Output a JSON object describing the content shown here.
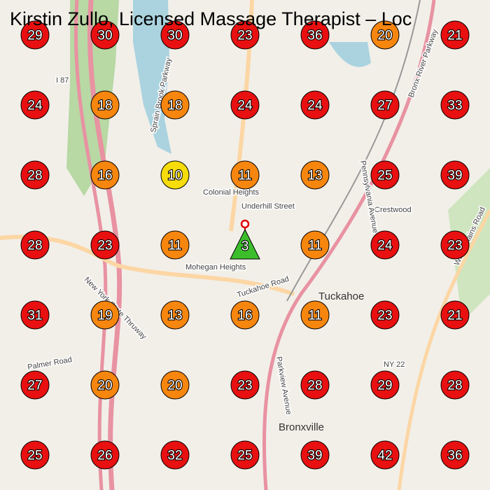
{
  "header": {
    "title": "Kirstin Zullo, Licensed Massage Therapist – Loc"
  },
  "grid": {
    "rows": [
      [
        {
          "rank": 29,
          "color": "#e81010"
        },
        {
          "rank": 30,
          "color": "#e81010"
        },
        {
          "rank": 30,
          "color": "#e81010"
        },
        {
          "rank": 23,
          "color": "#e81010"
        },
        {
          "rank": 36,
          "color": "#e81010"
        },
        {
          "rank": 20,
          "color": "#f7860f"
        },
        {
          "rank": 21,
          "color": "#e81010"
        }
      ],
      [
        {
          "rank": 24,
          "color": "#e81010"
        },
        {
          "rank": 18,
          "color": "#f7860f"
        },
        {
          "rank": 18,
          "color": "#f7860f"
        },
        {
          "rank": 24,
          "color": "#e81010"
        },
        {
          "rank": 24,
          "color": "#e81010"
        },
        {
          "rank": 27,
          "color": "#e81010"
        },
        {
          "rank": 33,
          "color": "#e81010"
        }
      ],
      [
        {
          "rank": 28,
          "color": "#e81010"
        },
        {
          "rank": 16,
          "color": "#f7860f"
        },
        {
          "rank": 10,
          "color": "#f5dc0a"
        },
        {
          "rank": 11,
          "color": "#f7860f"
        },
        {
          "rank": 13,
          "color": "#f7860f"
        },
        {
          "rank": 25,
          "color": "#e81010"
        },
        {
          "rank": 39,
          "color": "#e81010"
        }
      ],
      [
        {
          "rank": 28,
          "color": "#e81010"
        },
        {
          "rank": 23,
          "color": "#e81010"
        },
        {
          "rank": 11,
          "color": "#f7860f"
        },
        {
          "rank": 3,
          "color": "#3cbe2c",
          "shape": "triangle"
        },
        {
          "rank": 11,
          "color": "#f7860f"
        },
        {
          "rank": 24,
          "color": "#e81010"
        },
        {
          "rank": 23,
          "color": "#e81010"
        }
      ],
      [
        {
          "rank": 31,
          "color": "#e81010"
        },
        {
          "rank": 19,
          "color": "#f7860f"
        },
        {
          "rank": 13,
          "color": "#f7860f"
        },
        {
          "rank": 16,
          "color": "#f7860f"
        },
        {
          "rank": 11,
          "color": "#f7860f"
        },
        {
          "rank": 23,
          "color": "#e81010"
        },
        {
          "rank": 21,
          "color": "#e81010"
        }
      ],
      [
        {
          "rank": 27,
          "color": "#e81010"
        },
        {
          "rank": 20,
          "color": "#f7860f"
        },
        {
          "rank": 20,
          "color": "#f7860f"
        },
        {
          "rank": 23,
          "color": "#e81010"
        },
        {
          "rank": 28,
          "color": "#e81010"
        },
        {
          "rank": 29,
          "color": "#e81010"
        },
        {
          "rank": 28,
          "color": "#e81010"
        }
      ],
      [
        {
          "rank": 25,
          "color": "#e81010"
        },
        {
          "rank": 26,
          "color": "#e81010"
        },
        {
          "rank": 32,
          "color": "#e81010"
        },
        {
          "rank": 25,
          "color": "#e81010"
        },
        {
          "rank": 39,
          "color": "#e81010"
        },
        {
          "rank": 42,
          "color": "#e81010"
        },
        {
          "rank": 36,
          "color": "#e81010"
        }
      ]
    ]
  },
  "map_labels": [
    "Colonial Heights",
    "Underhill Street",
    "Mohegan Heights",
    "Tuckahoe Road",
    "Tuckahoe",
    "Crestwood",
    "Bronxville",
    "Sprain Brook Parkway",
    "New York State Thruway",
    "Bronx River Parkway",
    "White Plains Road",
    "NY 22",
    "I 87",
    "Palmer Road",
    "Pennsylvania Avenue",
    "Parkview Avenue"
  ]
}
